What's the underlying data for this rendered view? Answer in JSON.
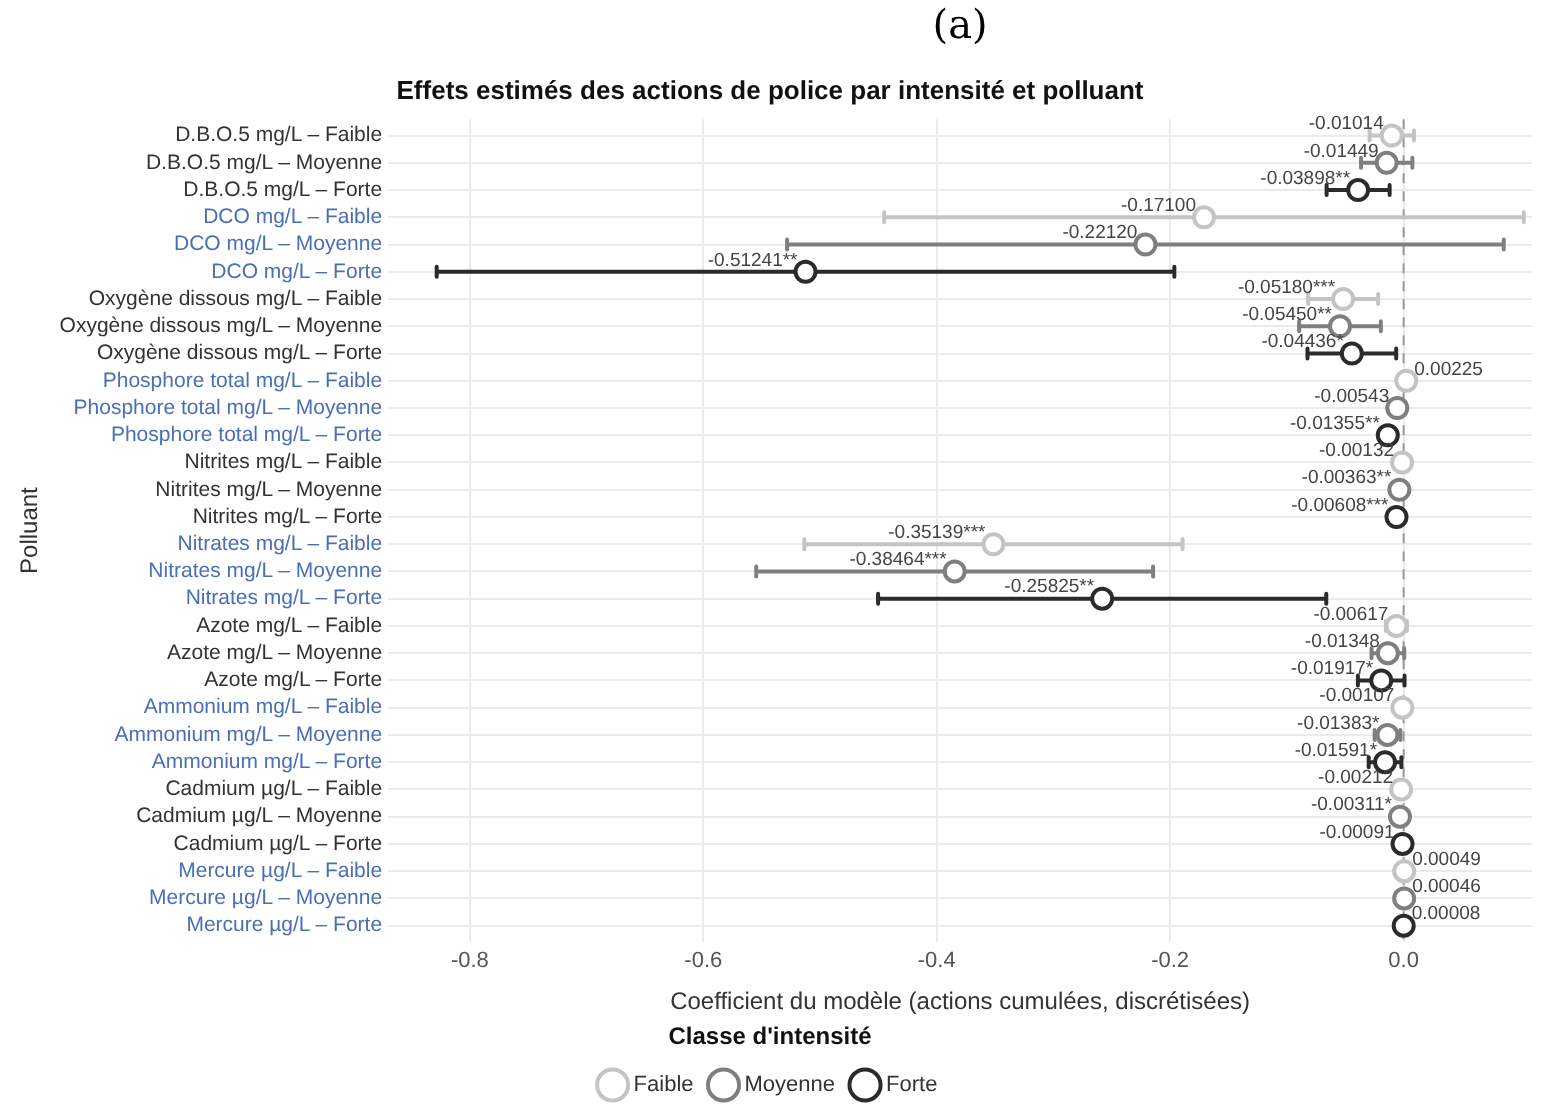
{
  "chart_data": {
    "type": "scatter",
    "orientation": "horizontal",
    "title": "Effets estimés des actions de police par intensité et polluant",
    "xlabel": "Coefficient du modèle (actions cumulées, discrétisées)",
    "ylabel": "Polluant",
    "legend_title": "Classe d'intensité",
    "annotations": [
      "(a)"
    ],
    "categories": [
      "D.B.O.5 mg/L – Faible",
      "D.B.O.5 mg/L – Moyenne",
      "D.B.O.5 mg/L – Forte",
      "DCO mg/L – Faible",
      "DCO mg/L – Moyenne",
      "DCO mg/L – Forte",
      "Oxygène dissous mg/L – Faible",
      "Oxygène dissous mg/L – Moyenne",
      "Oxygène dissous mg/L – Forte",
      "Phosphore total mg/L – Faible",
      "Phosphore total mg/L – Moyenne",
      "Phosphore total mg/L – Forte",
      "Nitrites mg/L – Faible",
      "Nitrites mg/L – Moyenne",
      "Nitrites mg/L – Forte",
      "Nitrates mg/L – Faible",
      "Nitrates mg/L – Moyenne",
      "Nitrates mg/L – Forte",
      "Azote mg/L – Faible",
      "Azote mg/L – Moyenne",
      "Azote mg/L – Forte",
      "Ammonium mg/L – Faible",
      "Ammonium mg/L – Moyenne",
      "Ammonium mg/L – Forte",
      "Cadmium µg/L – Faible",
      "Cadmium µg/L – Moyenne",
      "Cadmium µg/L – Forte",
      "Mercure µg/L – Faible",
      "Mercure µg/L – Moyenne",
      "Mercure µg/L – Forte"
    ],
    "xlim": [
      -0.87,
      0.11
    ],
    "xticks": [
      -0.8,
      -0.6,
      -0.4,
      -0.2,
      {
        "value": 0,
        "label": "0.0"
      }
    ],
    "grid": true,
    "legend": "bottom",
    "marker": "circle",
    "ref_lines": [
      {
        "axis": "x",
        "value": 0,
        "line_style": "dashed",
        "color": "#999999"
      }
    ],
    "series": [
      {
        "name": "Faible",
        "color": "#c4c4c4",
        "values": [
          -0.01014,
          null,
          null,
          -0.171,
          null,
          null,
          -0.0518,
          null,
          null,
          0.00225,
          null,
          null,
          -0.00132,
          null,
          null,
          -0.35139,
          null,
          null,
          -0.00617,
          null,
          null,
          -0.00107,
          null,
          null,
          -0.00212,
          null,
          null,
          0.00049,
          null,
          null
        ],
        "errors": [
          0.019,
          null,
          null,
          0.274,
          null,
          null,
          0.03,
          null,
          null,
          null,
          null,
          null,
          null,
          null,
          null,
          0.162,
          null,
          null,
          0.009,
          null,
          null,
          null,
          null,
          null,
          null,
          null,
          null,
          null,
          null,
          null
        ],
        "value_labels": [
          "-0.01014",
          null,
          null,
          "-0.17100",
          null,
          null,
          "-0.05180***",
          null,
          null,
          "0.00225",
          null,
          null,
          "-0.00132",
          null,
          null,
          "-0.35139***",
          null,
          null,
          "-0.00617",
          null,
          null,
          "-0.00107",
          null,
          null,
          "-0.00212",
          null,
          null,
          "0.00049",
          null,
          null
        ]
      },
      {
        "name": "Moyenne",
        "color": "#7f7f7f",
        "values": [
          null,
          -0.01449,
          null,
          null,
          -0.2212,
          null,
          null,
          -0.0545,
          null,
          null,
          -0.00543,
          null,
          null,
          -0.00363,
          null,
          null,
          -0.38464,
          null,
          null,
          -0.01348,
          null,
          null,
          -0.01383,
          null,
          null,
          -0.00311,
          null,
          null,
          0.00046,
          null
        ],
        "errors": [
          null,
          0.022,
          null,
          null,
          0.307,
          null,
          null,
          0.035,
          null,
          null,
          null,
          null,
          null,
          null,
          null,
          null,
          0.17,
          null,
          null,
          0.014,
          null,
          null,
          0.011,
          null,
          null,
          null,
          null,
          null,
          null,
          null
        ],
        "value_labels": [
          null,
          "-0.01449",
          null,
          null,
          "-0.22120",
          null,
          null,
          "-0.05450**",
          null,
          null,
          "-0.00543",
          null,
          null,
          "-0.00363**",
          null,
          null,
          "-0.38464***",
          null,
          null,
          "-0.01348",
          null,
          null,
          "-0.01383*",
          null,
          null,
          "-0.00311*",
          null,
          null,
          "0.00046",
          null
        ]
      },
      {
        "name": "Forte",
        "color": "#2b2b2b",
        "values": [
          null,
          null,
          -0.03898,
          null,
          null,
          -0.51241,
          null,
          null,
          -0.04436,
          null,
          null,
          -0.01355,
          null,
          null,
          -0.00608,
          null,
          null,
          -0.25825,
          null,
          null,
          -0.01917,
          null,
          null,
          -0.01591,
          null,
          null,
          -0.00091,
          null,
          null,
          8e-05
        ],
        "errors": [
          null,
          null,
          0.027,
          null,
          null,
          0.316,
          null,
          null,
          0.038,
          null,
          null,
          0.007,
          null,
          null,
          null,
          null,
          null,
          0.192,
          null,
          null,
          0.02,
          null,
          null,
          0.014,
          null,
          null,
          null,
          null,
          null,
          null
        ],
        "value_labels": [
          null,
          null,
          "-0.03898**",
          null,
          null,
          "-0.51241**",
          null,
          null,
          "-0.04436*",
          null,
          null,
          "-0.01355**",
          null,
          null,
          "-0.00608***",
          null,
          null,
          "-0.25825**",
          null,
          null,
          "-0.01917*",
          null,
          null,
          "-0.01591*",
          null,
          null,
          "-0.00091",
          null,
          null,
          "0.00008"
        ]
      }
    ]
  }
}
